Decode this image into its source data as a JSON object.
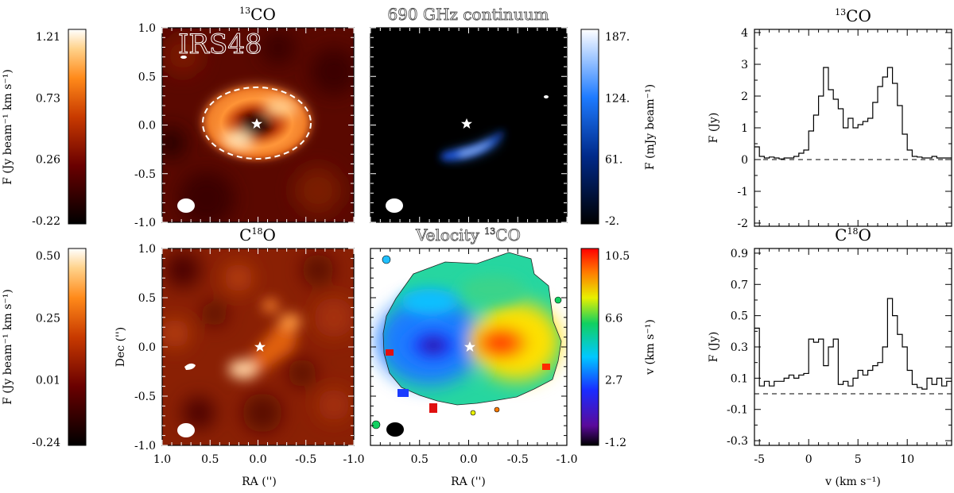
{
  "figure": {
    "object_label": "IRS48",
    "colors": {
      "axis": "#000000",
      "ellipse": "#ffffff",
      "star": "#ffffff"
    }
  },
  "chart_data": [
    {
      "id": "map-13co",
      "type": "heatmap",
      "title": "13CO",
      "title_iso": "13",
      "title_main": "CO",
      "colorbar": {
        "ticks": [
          "1.21",
          "0.73",
          "0.26",
          "-0.22"
        ],
        "label": "F (Jy beam⁻¹ km s⁻¹)",
        "colormap": "heat",
        "range": [
          -0.22,
          1.21
        ]
      },
      "xlim": [
        1.0,
        -1.0
      ],
      "ylim": [
        -1.0,
        1.0
      ],
      "yticks": [
        "1.0",
        "0.5",
        "0.0",
        "-0.5",
        "-1.0"
      ],
      "ylabel": "",
      "xlabel": "",
      "annotation": "IRS48"
    },
    {
      "id": "map-continuum",
      "type": "heatmap",
      "title": "690 GHz continuum",
      "colorbar": {
        "ticks": [
          "187.",
          "124.",
          "61.",
          "-2."
        ],
        "label": "F (mJy beam⁻¹)",
        "colormap": "blue",
        "range": [
          -2,
          187
        ]
      },
      "xlim": [
        1.0,
        -1.0
      ],
      "ylim": [
        -1.0,
        1.0
      ]
    },
    {
      "id": "map-c18o",
      "type": "heatmap",
      "title": "C18O",
      "title_main": "C",
      "title_iso": "18",
      "title_end": "O",
      "colorbar": {
        "ticks": [
          "0.50",
          "0.25",
          "0.01",
          "-0.24"
        ],
        "label": "F (Jy beam⁻¹ km s⁻¹)",
        "colormap": "heat",
        "range": [
          -0.24,
          0.5
        ]
      },
      "xlim": [
        1.0,
        -1.0
      ],
      "ylim": [
        -1.0,
        1.0
      ],
      "yticks": [
        "1.0",
        "0.5",
        "0.0",
        "-0.5",
        "-1.0"
      ],
      "xticks": [
        "1.0",
        "0.5",
        "0.0",
        "-0.5",
        "-1.0"
      ],
      "ylabel": "Dec ('')",
      "xlabel": "RA ('')"
    },
    {
      "id": "map-velocity",
      "type": "heatmap",
      "title": "Velocity 13CO",
      "title_main": "Velocity ",
      "title_iso": "13",
      "title_end": "CO",
      "colorbar": {
        "ticks": [
          "10.5",
          "6.6",
          "2.7",
          "-1.2"
        ],
        "label": "v (km s⁻¹)",
        "colormap": "rainbow",
        "range": [
          -1.2,
          10.5
        ]
      },
      "xlim": [
        1.0,
        -1.0
      ],
      "ylim": [
        -1.0,
        1.0
      ],
      "xticks": [
        "0.5",
        "0.0",
        "-0.5",
        "-1.0"
      ],
      "xlabel": "RA ('')"
    },
    {
      "id": "spec-13co",
      "type": "line",
      "title": "13CO",
      "title_iso": "13",
      "title_main": "CO",
      "ylabel": "F (Jy)",
      "xlabel": "",
      "xlim": [
        -5.5,
        14.5
      ],
      "ylim": [
        -2.1,
        4.1
      ],
      "yticks": [
        4,
        3,
        2,
        1,
        0,
        -1,
        -2
      ],
      "x": [
        -5.5,
        -5,
        -4.5,
        -4,
        -3.5,
        -3,
        -2.5,
        -2,
        -1.5,
        -1,
        -0.5,
        0,
        0.5,
        1,
        1.5,
        2,
        2.5,
        3,
        3.5,
        4,
        4.5,
        5,
        5.5,
        6,
        6.5,
        7,
        7.5,
        8,
        8.5,
        9,
        9.5,
        10,
        10.5,
        11,
        11.5,
        12,
        12.5,
        13,
        13.5,
        14
      ],
      "y": [
        0.4,
        0.1,
        0.05,
        0.08,
        0.05,
        0.02,
        0.05,
        0.05,
        0.1,
        0.2,
        0.3,
        0.9,
        1.4,
        2.0,
        2.9,
        2.2,
        1.9,
        1.6,
        1.0,
        1.3,
        1.0,
        1.1,
        1.2,
        1.3,
        1.8,
        2.3,
        2.6,
        2.9,
        2.4,
        1.7,
        0.8,
        0.3,
        0.1,
        0.08,
        0.05,
        0.05,
        0.1,
        0.05,
        0.05,
        0.05
      ]
    },
    {
      "id": "spec-c18o",
      "type": "line",
      "title": "C18O",
      "title_main": "C",
      "title_iso": "18",
      "title_end": "O",
      "ylabel": "F (Jy)",
      "xlabel": "v (km s⁻¹)",
      "xlim": [
        -5.5,
        14.5
      ],
      "ylim": [
        -0.33,
        0.93
      ],
      "yticks": [
        0.9,
        0.7,
        0.5,
        0.3,
        0.1,
        -0.1,
        -0.3
      ],
      "ytick_labels": [
        "0.9",
        "0.7",
        "0.5",
        "0.3",
        "0.1",
        "-0.1",
        "-0.3"
      ],
      "xticks": [
        -5,
        0,
        5,
        10
      ],
      "x": [
        -5.5,
        -5,
        -4.5,
        -4,
        -3.5,
        -3,
        -2.5,
        -2,
        -1.5,
        -1,
        -0.5,
        0,
        0.5,
        1,
        1.5,
        2,
        2.5,
        3,
        3.5,
        4,
        4.5,
        5,
        5.5,
        6,
        6.5,
        7,
        7.5,
        8,
        8.5,
        9,
        9.5,
        10,
        10.5,
        11,
        11.5,
        12,
        12.5,
        13,
        13.5,
        14
      ],
      "y": [
        0.42,
        0.05,
        0.08,
        0.05,
        0.08,
        0.08,
        0.1,
        0.12,
        0.1,
        0.12,
        0.13,
        0.35,
        0.33,
        0.35,
        0.18,
        0.3,
        0.35,
        0.06,
        0.08,
        0.05,
        0.1,
        0.15,
        0.12,
        0.15,
        0.18,
        0.2,
        0.3,
        0.61,
        0.5,
        0.38,
        0.3,
        0.15,
        0.06,
        0.04,
        0.03,
        0.1,
        0.06,
        0.1,
        0.05,
        0.08
      ]
    }
  ]
}
